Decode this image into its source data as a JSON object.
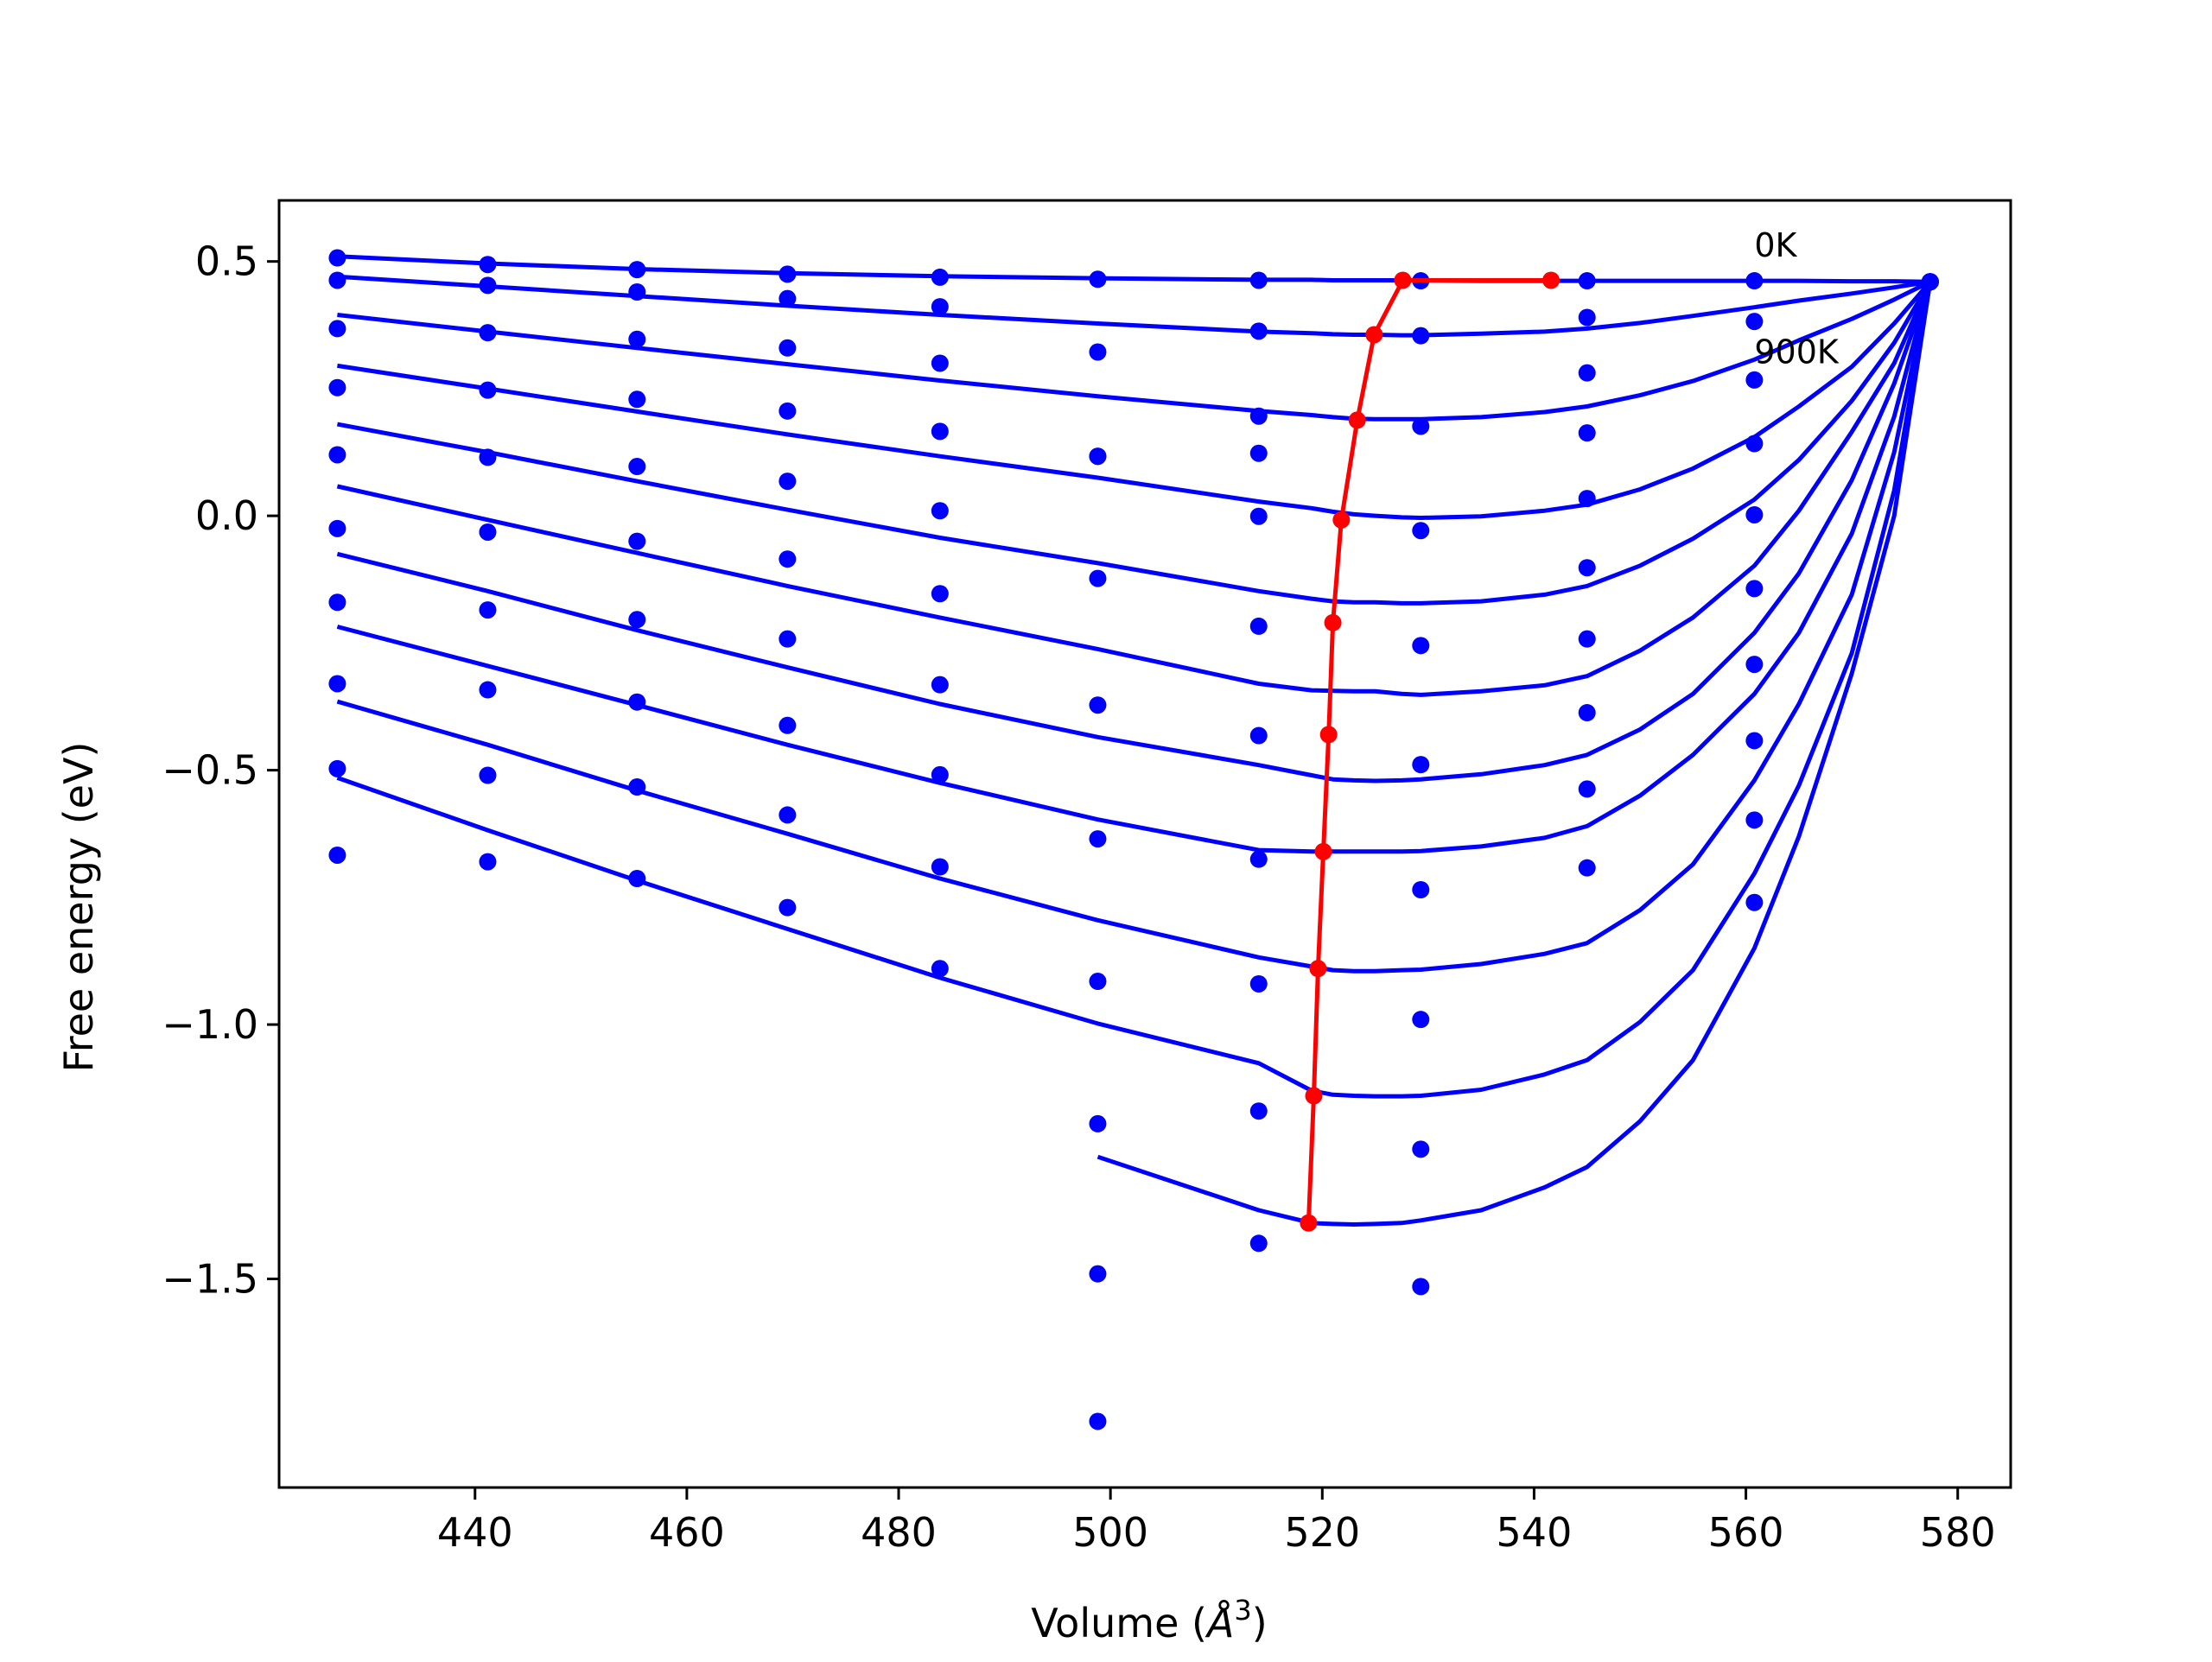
{
  "chart_data": {
    "type": "scatter",
    "xlabel": "Volume (",
    "xlabel_unit": "Å",
    "xlabel_sup": "3",
    "xlabel_close": ")",
    "ylabel": "Free energy (eV)",
    "xlim": [
      421.5,
      585
    ],
    "ylim": [
      -1.91,
      0.62
    ],
    "xticks": [
      440,
      460,
      480,
      500,
      520,
      540,
      560,
      580
    ],
    "xtick_labels": [
      "440",
      "460",
      "480",
      "500",
      "520",
      "540",
      "560",
      "580"
    ],
    "yticks": [
      0.5,
      0.0,
      -0.5,
      -1.0,
      -1.5
    ],
    "ytick_labels": [
      "0.5",
      "0.0",
      "−0.5",
      "−1.0",
      "−1.5"
    ],
    "annotations": [
      {
        "text": "0K",
        "x": 560.8,
        "y": 0.51
      },
      {
        "text": "900K",
        "x": 560.8,
        "y": 0.3
      }
    ],
    "grid": false,
    "legend": "none",
    "colors": {
      "series": "#0000ff",
      "minimum_path": "#ff0000",
      "axes": "#000000"
    },
    "volumes": [
      427.0,
      441.2,
      455.3,
      469.5,
      483.9,
      498.8,
      514.0,
      529.3,
      545.0,
      560.8,
      577.4
    ],
    "fit_x": [
      427.0,
      441.2,
      455.3,
      469.5,
      483.9,
      498.8,
      514.0,
      519.0,
      521.0,
      523.0,
      525.0,
      527.5,
      529.3,
      535.0,
      541.0,
      545.0,
      550.0,
      555.0,
      560.8,
      565.0,
      570.0,
      574.0,
      577.4
    ],
    "series": [
      {
        "name": "0K",
        "points": [
          0.507,
          0.494,
          0.484,
          0.475,
          0.469,
          0.465,
          0.463,
          0.462,
          0.462,
          0.462,
          0.46
        ],
        "fit": [
          0.51,
          0.496,
          0.485,
          0.477,
          0.471,
          0.467,
          0.464,
          0.464,
          0.463,
          0.463,
          0.463,
          0.463,
          0.463,
          0.462,
          0.462,
          0.462,
          0.462,
          0.462,
          0.462,
          0.462,
          0.461,
          0.461,
          0.46
        ]
      },
      {
        "points": [
          0.463,
          0.453,
          0.44,
          0.427,
          0.411,
          0.322,
          0.363,
          0.354,
          0.39,
          0.382,
          0.46
        ],
        "fit": [
          0.47,
          0.451,
          0.432,
          0.413,
          0.395,
          0.378,
          0.362,
          0.359,
          0.357,
          0.356,
          0.356,
          0.355,
          0.355,
          0.358,
          0.362,
          0.368,
          0.379,
          0.393,
          0.41,
          0.423,
          0.437,
          0.449,
          0.46
        ]
      },
      {
        "points": [
          0.368,
          0.36,
          0.347,
          0.33,
          0.3,
          0.117,
          0.196,
          0.176,
          0.281,
          0.267,
          0.46
        ],
        "fit": [
          0.395,
          0.362,
          0.33,
          0.298,
          0.266,
          0.235,
          0.206,
          0.198,
          0.194,
          0.191,
          0.19,
          0.19,
          0.19,
          0.194,
          0.204,
          0.215,
          0.237,
          0.265,
          0.307,
          0.345,
          0.387,
          0.425,
          0.46
        ]
      },
      {
        "points": [
          0.252,
          0.247,
          0.229,
          0.206,
          0.166,
          0.117,
          0.123,
          -0.029,
          0.163,
          0.142,
          0.46
        ],
        "fit": [
          0.295,
          0.25,
          0.205,
          0.16,
          0.117,
          0.075,
          0.028,
          0.015,
          0.008,
          0.003,
          0.0,
          -0.003,
          -0.004,
          -0.001,
          0.01,
          0.022,
          0.052,
          0.093,
          0.155,
          0.215,
          0.293,
          0.378,
          0.46
        ]
      },
      {
        "points": [
          0.12,
          0.115,
          0.097,
          0.068,
          0.01,
          -0.123,
          -0.001,
          -0.255,
          0.034,
          0.002,
          0.46
        ],
        "fit": [
          0.18,
          0.125,
          0.068,
          0.012,
          -0.043,
          -0.093,
          -0.148,
          -0.163,
          -0.168,
          -0.17,
          -0.17,
          -0.172,
          -0.172,
          -0.168,
          -0.155,
          -0.138,
          -0.098,
          -0.045,
          0.032,
          0.11,
          0.226,
          0.34,
          0.46
        ]
      },
      {
        "points": [
          -0.025,
          -0.032,
          -0.05,
          -0.085,
          -0.153,
          -0.372,
          -0.217,
          -0.489,
          -0.102,
          -0.143,
          0.46
        ],
        "fit": [
          0.058,
          -0.008,
          -0.073,
          -0.138,
          -0.2,
          -0.262,
          -0.33,
          -0.343,
          -0.344,
          -0.345,
          -0.345,
          -0.35,
          -0.352,
          -0.345,
          -0.333,
          -0.315,
          -0.265,
          -0.2,
          -0.098,
          0.01,
          0.165,
          0.3,
          0.46
        ]
      },
      {
        "points": [
          -0.17,
          -0.185,
          -0.204,
          -0.242,
          -0.332,
          -0.635,
          -0.432,
          -0.735,
          -0.242,
          -0.292,
          0.46
        ],
        "fit": [
          -0.075,
          -0.148,
          -0.225,
          -0.298,
          -0.37,
          -0.435,
          -0.49,
          -0.51,
          -0.518,
          -0.52,
          -0.521,
          -0.52,
          -0.518,
          -0.508,
          -0.49,
          -0.47,
          -0.42,
          -0.35,
          -0.23,
          -0.113,
          0.07,
          0.26,
          0.46
        ]
      },
      {
        "points": [
          -0.33,
          -0.342,
          -0.366,
          -0.412,
          -0.509,
          -0.915,
          -0.675,
          -0.99,
          -0.387,
          -0.442,
          0.46
        ],
        "fit": [
          -0.218,
          -0.295,
          -0.372,
          -0.45,
          -0.525,
          -0.597,
          -0.657,
          -0.66,
          -0.66,
          -0.66,
          -0.66,
          -0.66,
          -0.659,
          -0.65,
          -0.633,
          -0.61,
          -0.55,
          -0.47,
          -0.35,
          -0.23,
          -0.035,
          0.195,
          0.46
        ]
      },
      {
        "points": [
          -0.497,
          -0.51,
          -0.533,
          -0.588,
          -0.69,
          -1.195,
          -0.92,
          -1.245,
          -0.537,
          -0.598,
          0.46
        ],
        "fit": [
          -0.365,
          -0.45,
          -0.54,
          -0.625,
          -0.713,
          -0.795,
          -0.868,
          -0.886,
          -0.893,
          -0.895,
          -0.895,
          -0.893,
          -0.892,
          -0.881,
          -0.861,
          -0.84,
          -0.775,
          -0.685,
          -0.52,
          -0.37,
          -0.155,
          0.125,
          0.46
        ]
      },
      {
        "points": [
          -0.667,
          -0.68,
          -0.713,
          -0.77,
          -0.89,
          -1.49,
          -1.17,
          -1.515,
          -0.692,
          -0.76,
          0.46
        ],
        "fit": [
          -0.515,
          -0.618,
          -0.717,
          -0.812,
          -0.908,
          -0.998,
          -1.076,
          -1.13,
          -1.138,
          -1.14,
          -1.141,
          -1.141,
          -1.14,
          -1.128,
          -1.098,
          -1.07,
          -0.995,
          -0.893,
          -0.703,
          -0.53,
          -0.27,
          0.05,
          0.46
        ]
      },
      {
        "name": "900K",
        "points": [
          null,
          null,
          null,
          null,
          null,
          -1.78,
          -1.43,
          null,
          null,
          null,
          0.46
        ],
        "fit": [
          null,
          null,
          null,
          null,
          null,
          -1.26,
          -1.365,
          -1.39,
          -1.392,
          -1.393,
          -1.392,
          -1.39,
          -1.385,
          -1.365,
          -1.32,
          -1.28,
          -1.19,
          -1.07,
          -0.85,
          -0.63,
          -0.31,
          0.0,
          0.46
        ]
      }
    ],
    "minimum_path": {
      "x": [
        518.7,
        519.2,
        519.6,
        520.1,
        520.6,
        521.0,
        521.8,
        523.3,
        524.9,
        527.6,
        541.6
      ],
      "y": [
        -1.39,
        -1.14,
        -0.89,
        -0.66,
        -0.43,
        -0.21,
        -0.008,
        0.188,
        0.356,
        0.463,
        0.463
      ]
    }
  }
}
